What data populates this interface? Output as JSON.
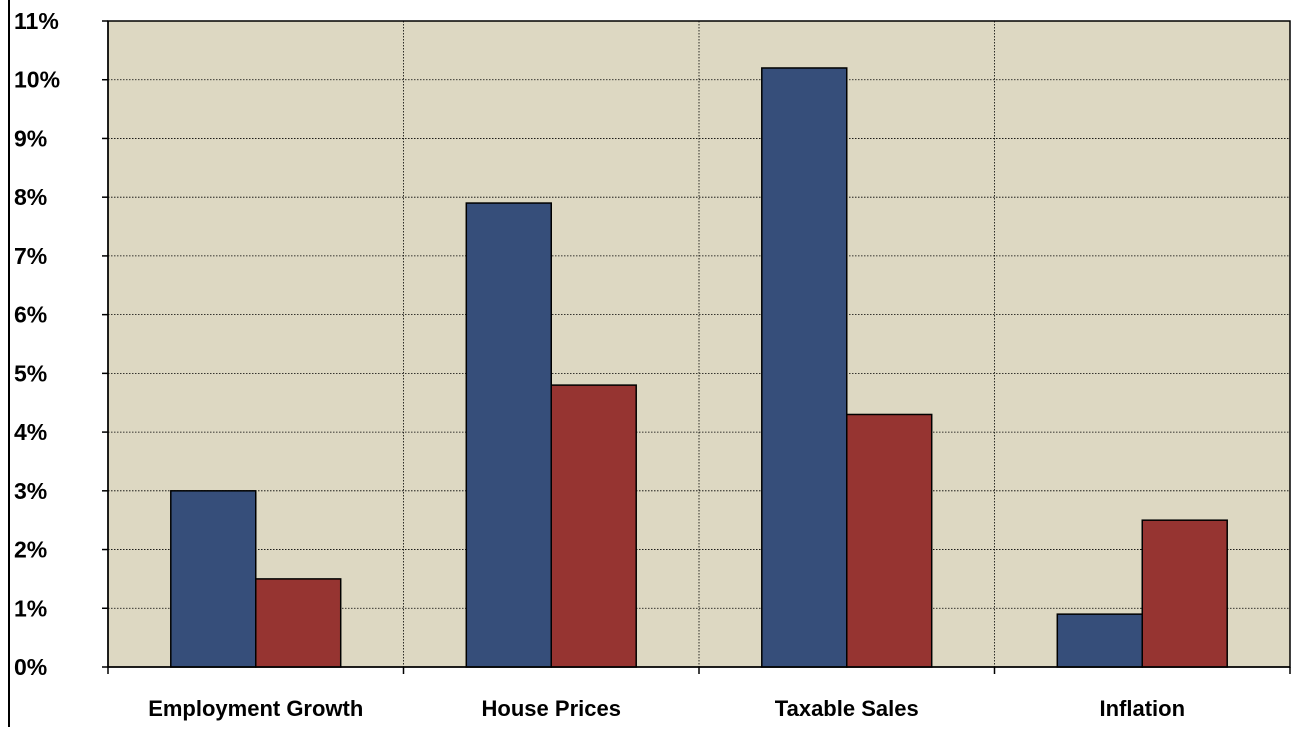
{
  "chart_data": {
    "type": "bar",
    "categories": [
      "Employment Growth",
      "House Prices",
      "Taxable Sales",
      "Inflation"
    ],
    "series": [
      {
        "values": [
          3.0,
          7.9,
          10.2,
          0.9
        ],
        "color": "#364e7a"
      },
      {
        "values": [
          1.5,
          4.8,
          4.3,
          2.5
        ],
        "color": "#963431"
      }
    ],
    "ylim": [
      0,
      11
    ],
    "yticks": [
      "0%",
      "1%",
      "2%",
      "3%",
      "4%",
      "5%",
      "6%",
      "7%",
      "8%",
      "9%",
      "10%",
      "11%"
    ],
    "grid": true,
    "plot_background": "#ddd8c2",
    "legend": false
  }
}
